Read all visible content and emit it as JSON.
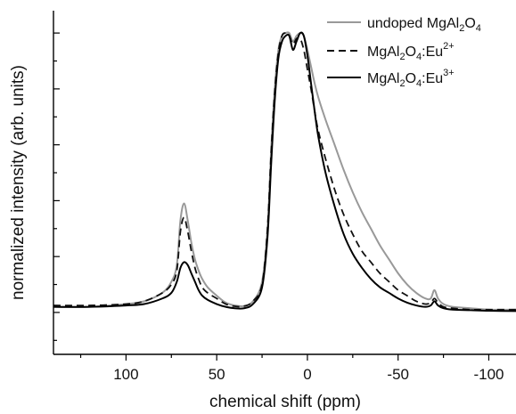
{
  "chart_data": {
    "type": "line",
    "xlabel": "chemical shift (ppm)",
    "ylabel": "normalized intensity (arb. units)",
    "x_reversed": true,
    "xlim": [
      140,
      -115
    ],
    "ylim": [
      -0.15,
      1.08
    ],
    "x_ticks": [
      100,
      50,
      0,
      -50,
      -100
    ],
    "x_tick_labels": [
      "100",
      "50",
      "0",
      "-50",
      "-100"
    ],
    "y_tick_labels_shown": false,
    "legend_position": "top-right",
    "series": [
      {
        "name": "undoped MgAl2O4",
        "legend_parts": {
          "a": "undoped MgAl",
          "b": "2",
          "c": "O",
          "d": "4",
          "e": ""
        },
        "color": "#999999",
        "dash": "solid",
        "x": [
          140,
          120,
          100,
          90,
          80,
          75,
          72,
          70,
          68,
          66,
          64,
          62,
          60,
          58,
          55,
          50,
          45,
          40,
          35,
          30,
          25,
          22,
          20,
          18,
          16,
          14,
          12,
          10,
          8,
          6,
          4,
          2,
          0,
          -2,
          -4,
          -6,
          -10,
          -15,
          -20,
          -25,
          -30,
          -35,
          -40,
          -45,
          -50,
          -55,
          -60,
          -65,
          -68,
          -70,
          -72,
          -75,
          -80,
          -90,
          -100,
          -115
        ],
        "y": [
          0.02,
          0.02,
          0.03,
          0.04,
          0.07,
          0.11,
          0.17,
          0.33,
          0.39,
          0.33,
          0.25,
          0.19,
          0.15,
          0.12,
          0.09,
          0.06,
          0.035,
          0.025,
          0.023,
          0.04,
          0.11,
          0.3,
          0.58,
          0.8,
          0.94,
          0.99,
          1.0,
          1.0,
          0.97,
          0.99,
          1.0,
          0.99,
          0.94,
          0.88,
          0.82,
          0.77,
          0.69,
          0.6,
          0.51,
          0.43,
          0.36,
          0.3,
          0.24,
          0.19,
          0.14,
          0.1,
          0.07,
          0.05,
          0.05,
          0.08,
          0.05,
          0.03,
          0.02,
          0.015,
          0.01,
          0.01
        ]
      },
      {
        "name": "MgAl2O4:Eu2+",
        "legend_parts": {
          "a": "MgAl",
          "b": "2",
          "c": "O",
          "d": "4",
          "e": ":Eu",
          "sup": "2+"
        },
        "color": "#111111",
        "dash": "dashed",
        "x": [
          140,
          120,
          100,
          90,
          80,
          75,
          72,
          70,
          68,
          66,
          64,
          62,
          60,
          58,
          55,
          50,
          45,
          40,
          35,
          30,
          25,
          22,
          20,
          18,
          16,
          14,
          12,
          10,
          8,
          6,
          4,
          2,
          0,
          -2,
          -4,
          -6,
          -10,
          -15,
          -20,
          -25,
          -30,
          -35,
          -40,
          -45,
          -50,
          -55,
          -60,
          -65,
          -68,
          -70,
          -72,
          -75,
          -80,
          -90,
          -100,
          -115
        ],
        "y": [
          0.025,
          0.025,
          0.03,
          0.04,
          0.07,
          0.1,
          0.15,
          0.29,
          0.34,
          0.29,
          0.22,
          0.16,
          0.12,
          0.09,
          0.07,
          0.05,
          0.03,
          0.022,
          0.022,
          0.04,
          0.1,
          0.3,
          0.57,
          0.79,
          0.93,
          0.99,
          1.0,
          0.99,
          0.96,
          0.98,
          0.98,
          0.94,
          0.87,
          0.8,
          0.72,
          0.65,
          0.55,
          0.44,
          0.35,
          0.28,
          0.22,
          0.18,
          0.14,
          0.11,
          0.08,
          0.06,
          0.04,
          0.03,
          0.035,
          0.05,
          0.035,
          0.02,
          0.015,
          0.01,
          0.01,
          0.01
        ]
      },
      {
        "name": "MgAl2O4:Eu3+",
        "legend_parts": {
          "a": "MgAl",
          "b": "2",
          "c": "O",
          "d": "4",
          "e": ":Eu",
          "sup": "3+"
        },
        "color": "#000000",
        "dash": "solid",
        "x": [
          140,
          120,
          100,
          90,
          80,
          75,
          72,
          70,
          68,
          66,
          64,
          62,
          60,
          58,
          55,
          50,
          45,
          40,
          35,
          30,
          25,
          22,
          20,
          18,
          16,
          14,
          12,
          10,
          8,
          6,
          4,
          2,
          0,
          -2,
          -4,
          -6,
          -10,
          -15,
          -20,
          -25,
          -30,
          -35,
          -40,
          -45,
          -50,
          -55,
          -60,
          -65,
          -68,
          -70,
          -72,
          -75,
          -80,
          -90,
          -100,
          -115
        ],
        "y": [
          0.02,
          0.02,
          0.025,
          0.03,
          0.05,
          0.07,
          0.11,
          0.16,
          0.18,
          0.17,
          0.14,
          0.11,
          0.08,
          0.06,
          0.045,
          0.03,
          0.02,
          0.015,
          0.015,
          0.03,
          0.09,
          0.27,
          0.53,
          0.76,
          0.91,
          0.97,
          0.99,
          0.99,
          0.94,
          0.97,
          1.0,
          0.99,
          0.92,
          0.82,
          0.72,
          0.63,
          0.5,
          0.38,
          0.28,
          0.21,
          0.16,
          0.12,
          0.09,
          0.07,
          0.05,
          0.035,
          0.025,
          0.02,
          0.025,
          0.04,
          0.025,
          0.015,
          0.01,
          0.008,
          0.006,
          0.005
        ]
      }
    ]
  }
}
